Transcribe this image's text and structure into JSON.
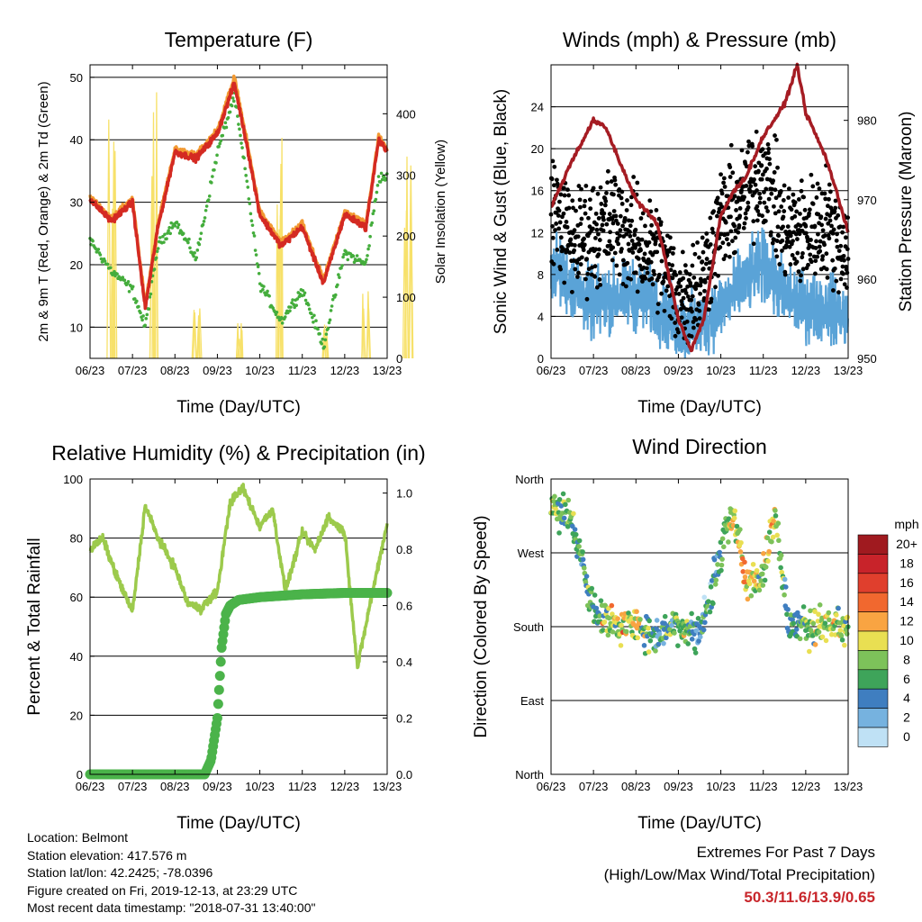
{
  "x_ticks": [
    "06/23",
    "07/23",
    "08/23",
    "09/23",
    "10/23",
    "11/23",
    "12/23",
    "13/23"
  ],
  "x_label": "Time (Day/UTC)",
  "colors": {
    "temp_red": "#d42a22",
    "temp_orange": "#f29a33",
    "dewpoint_green": "#44ad3c",
    "solar_yellow": "#f7e16a",
    "wind_blue": "#5aa3d7",
    "gust_black": "#000000",
    "pressure_maroon": "#a51c23",
    "rh_green": "#9cca4c",
    "precip_green": "#4bb34a",
    "extremes_red": "#c8262b"
  },
  "panels": {
    "temperature": {
      "title": "Temperature (F)",
      "left_label": "2m & 9m T (Red, Orange) & 2m Td (Green)",
      "right_label": "Solar Insolation (Yellow)"
    },
    "winds": {
      "title": "Winds (mph) & Pressure (mb)",
      "left_label": "Sonic Wind & Gust (Blue, Black)",
      "right_label": "Station Pressure (Maroon)"
    },
    "humidity": {
      "title": "Relative Humidity (%) & Precipitation (in)",
      "left_label": "Percent & Total Rainfall"
    },
    "direction": {
      "title": "Wind Direction",
      "left_label": "Direction (Colored By Speed)",
      "colorbar_title": "mph",
      "colorbar_labels": [
        "20+",
        "18",
        "16",
        "14",
        "12",
        "10",
        "8",
        "6",
        "4",
        "2",
        "0"
      ],
      "colorbar_colors": [
        "#a01a1f",
        "#c8232a",
        "#e03f2d",
        "#f1682f",
        "#f9a442",
        "#e9df52",
        "#7dc25a",
        "#3ea45a",
        "#3f7ec0",
        "#76b2df",
        "#bfe1f5"
      ]
    }
  },
  "chart_data": [
    {
      "type": "line",
      "title": "Temperature (F)",
      "xlabel": "Time (Day/UTC)",
      "ylabel": "2m & 9m T (Red, Orange) & 2m Td (Green)",
      "y2label": "Solar Insolation (Yellow)",
      "x": [
        6.0,
        6.5,
        7.0,
        7.3,
        7.6,
        8.0,
        8.5,
        9.0,
        9.4,
        9.7,
        10.0,
        10.5,
        11.0,
        11.5,
        12.0,
        12.5,
        12.8,
        13.0
      ],
      "ylim": [
        5,
        52
      ],
      "y2lim": [
        0,
        480
      ],
      "yticks": [
        10,
        20,
        30,
        40,
        50
      ],
      "y2ticks": [
        0,
        100,
        200,
        300,
        400
      ],
      "grid": true,
      "series": [
        {
          "name": "2m T",
          "axis": "left",
          "values": [
            30.5,
            27,
            30,
            13,
            26,
            38,
            37,
            41,
            49,
            39,
            28,
            23,
            26,
            17,
            28,
            26,
            40,
            38
          ]
        },
        {
          "name": "9m T",
          "axis": "left",
          "values": [
            30.8,
            27.5,
            30.5,
            13.5,
            26.5,
            38.5,
            37.5,
            41.5,
            50,
            39.5,
            28.5,
            23.5,
            26.5,
            17.5,
            28.5,
            26.5,
            40.5,
            38.5
          ]
        },
        {
          "name": "2m Td",
          "axis": "left",
          "values": [
            24,
            19,
            16,
            10,
            23,
            27,
            21,
            38,
            47,
            33,
            17,
            11,
            16,
            7,
            22,
            20,
            34,
            34
          ]
        },
        {
          "name": "Solar Insolation",
          "axis": "right",
          "type": "spikes",
          "peaks": [
            {
              "x": 6.5,
              "value": 420
            },
            {
              "x": 7.5,
              "value": 480
            },
            {
              "x": 8.5,
              "value": 120
            },
            {
              "x": 9.5,
              "value": 70
            },
            {
              "x": 10.5,
              "value": 440
            },
            {
              "x": 11.5,
              "value": 70
            },
            {
              "x": 12.5,
              "value": 110
            },
            {
              "x": 13.5,
              "value": 360
            }
          ]
        }
      ]
    },
    {
      "type": "scatter",
      "title": "Winds (mph) & Pressure (mb)",
      "xlabel": "Time (Day/UTC)",
      "ylabel": "Sonic Wind & Gust (Blue, Black)",
      "y2label": "Station Pressure (Maroon)",
      "ylim": [
        0,
        28
      ],
      "y2lim": [
        950,
        987
      ],
      "yticks": [
        0,
        4,
        8,
        12,
        16,
        20,
        24
      ],
      "y2ticks": [
        950,
        960,
        970,
        980
      ],
      "grid": true,
      "series": [
        {
          "name": "Sonic Wind",
          "axis": "left",
          "x": [
            6.0,
            6.5,
            7.0,
            7.5,
            8.0,
            8.5,
            9.0,
            9.5,
            10.0,
            10.5,
            11.0,
            11.5,
            12.0,
            12.5,
            13.0
          ],
          "values": [
            9,
            7,
            5,
            6,
            6,
            5,
            3,
            3,
            5,
            7,
            9,
            6,
            5,
            5,
            4
          ]
        },
        {
          "name": "Gust",
          "axis": "left",
          "x": [
            6.0,
            6.5,
            7.0,
            7.5,
            8.0,
            8.5,
            9.0,
            9.5,
            10.0,
            10.5,
            11.0,
            11.5,
            12.0,
            12.5,
            13.0
          ],
          "values": [
            15,
            11,
            12,
            13,
            11,
            10,
            6,
            7,
            13,
            15,
            18,
            12,
            12,
            13,
            10
          ]
        },
        {
          "name": "Station Pressure",
          "axis": "right",
          "type": "line",
          "x": [
            6.0,
            6.5,
            7.0,
            7.3,
            7.6,
            8.0,
            8.5,
            9.0,
            9.3,
            9.6,
            10.0,
            10.3,
            10.6,
            11.0,
            11.5,
            11.8,
            12.0,
            12.5,
            13.0
          ],
          "values": [
            969,
            975,
            980,
            979,
            975,
            970,
            967,
            955,
            951,
            955,
            968,
            971,
            973,
            978,
            982,
            987,
            981,
            975,
            966
          ]
        }
      ]
    },
    {
      "type": "line",
      "title": "Relative Humidity (%) & Precipitation (in)",
      "xlabel": "Time (Day/UTC)",
      "ylabel": "Percent & Total Rainfall",
      "ylim": [
        0,
        100
      ],
      "y2lim": [
        0,
        1.05
      ],
      "yticks": [
        0,
        20,
        40,
        60,
        80,
        100
      ],
      "y2ticks": [
        0.0,
        0.2,
        0.4,
        0.6,
        0.8,
        1.0
      ],
      "grid": true,
      "series": [
        {
          "name": "Relative Humidity",
          "axis": "left",
          "x": [
            6.0,
            6.3,
            6.6,
            7.0,
            7.3,
            7.6,
            8.0,
            8.3,
            8.6,
            9.0,
            9.3,
            9.6,
            10.0,
            10.3,
            10.6,
            11.0,
            11.3,
            11.6,
            12.0,
            12.3,
            12.6,
            13.0
          ],
          "values": [
            76,
            80,
            68,
            55,
            91,
            80,
            70,
            58,
            56,
            62,
            92,
            97,
            84,
            90,
            62,
            82,
            76,
            87,
            82,
            36,
            58,
            85
          ]
        },
        {
          "name": "Total Rainfall",
          "axis": "right",
          "x": [
            6.0,
            7.0,
            8.0,
            8.7,
            8.85,
            9.0,
            9.1,
            9.2,
            9.3,
            9.5,
            10.0,
            11.0,
            12.0,
            13.0
          ],
          "values": [
            0.0,
            0.0,
            0.0,
            0.0,
            0.05,
            0.2,
            0.45,
            0.57,
            0.6,
            0.62,
            0.63,
            0.64,
            0.645,
            0.645
          ]
        }
      ]
    },
    {
      "type": "scatter",
      "title": "Wind Direction",
      "xlabel": "Time (Day/UTC)",
      "ylabel": "Direction (Colored By Speed)",
      "ylim": [
        0,
        360
      ],
      "yticks": [
        "North",
        "East",
        "South",
        "West",
        "North"
      ],
      "ytick_values": [
        0,
        90,
        180,
        270,
        360
      ],
      "grid": true,
      "colorbar_title": "mph",
      "colorbar_labels": [
        "20+",
        "18",
        "16",
        "14",
        "12",
        "10",
        "8",
        "6",
        "4",
        "2",
        "0"
      ],
      "x": [
        6.0,
        6.5,
        7.0,
        7.5,
        8.0,
        8.5,
        9.0,
        9.5,
        10.0,
        10.3,
        10.6,
        11.0,
        11.3,
        11.6,
        12.0,
        12.5,
        13.0
      ],
      "values": [
        330,
        310,
        200,
        185,
        180,
        170,
        185,
        170,
        270,
        320,
        230,
        250,
        320,
        180,
        180,
        180,
        180
      ],
      "speeds": [
        8,
        6,
        6,
        9,
        10,
        4,
        8,
        4,
        6,
        10,
        11,
        9,
        10,
        4,
        8,
        9,
        7
      ]
    }
  ],
  "footer": {
    "location": "Location: Belmont",
    "elevation": "Station elevation: 417.576 m",
    "latlon": "Station lat/lon: 42.2425; -78.0396",
    "created": "Figure created on Fri, 2019-12-13, at 23:29 UTC",
    "recent": "Most recent data timestamp: \"2018-07-31 13:40:00\""
  },
  "extremes": {
    "heading": "Extremes For Past 7 Days",
    "subheading": "(High/Low/Max Wind/Total Precipitation)",
    "value": "50.3/11.6/13.9/0.65"
  }
}
